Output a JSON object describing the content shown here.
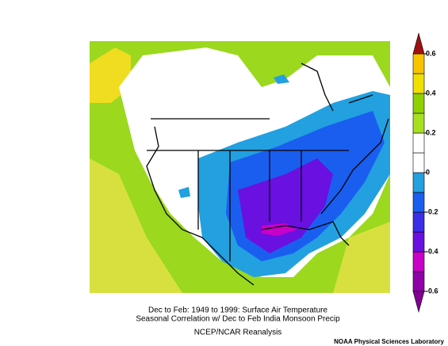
{
  "title_lines": [
    "Dec to Feb: 1949 to 1999: Surface Air Temperature",
    "Seasonal Correlation w/ Dec to Feb India Monsoon Precip"
  ],
  "source": "NCEP/NCAR Reanalysis",
  "credit": "NOAA Physical Sciences Laboratory",
  "colorbar": {
    "lim": [
      -0.6,
      0.6
    ],
    "ticks": [
      -0.6,
      -0.4,
      -0.2,
      0,
      0.2,
      0.4,
      0.6
    ],
    "under_color": "#800090",
    "over_color": "#a01010",
    "colors": [
      "#9000a8",
      "#c800c8",
      "#6a10e0",
      "#3a2ee8",
      "#1a5ef0",
      "#22a0e0",
      "#ffffff",
      "#ffffff",
      "#a8e020",
      "#8fd000",
      "#f0e000",
      "#f8c400"
    ]
  }
}
